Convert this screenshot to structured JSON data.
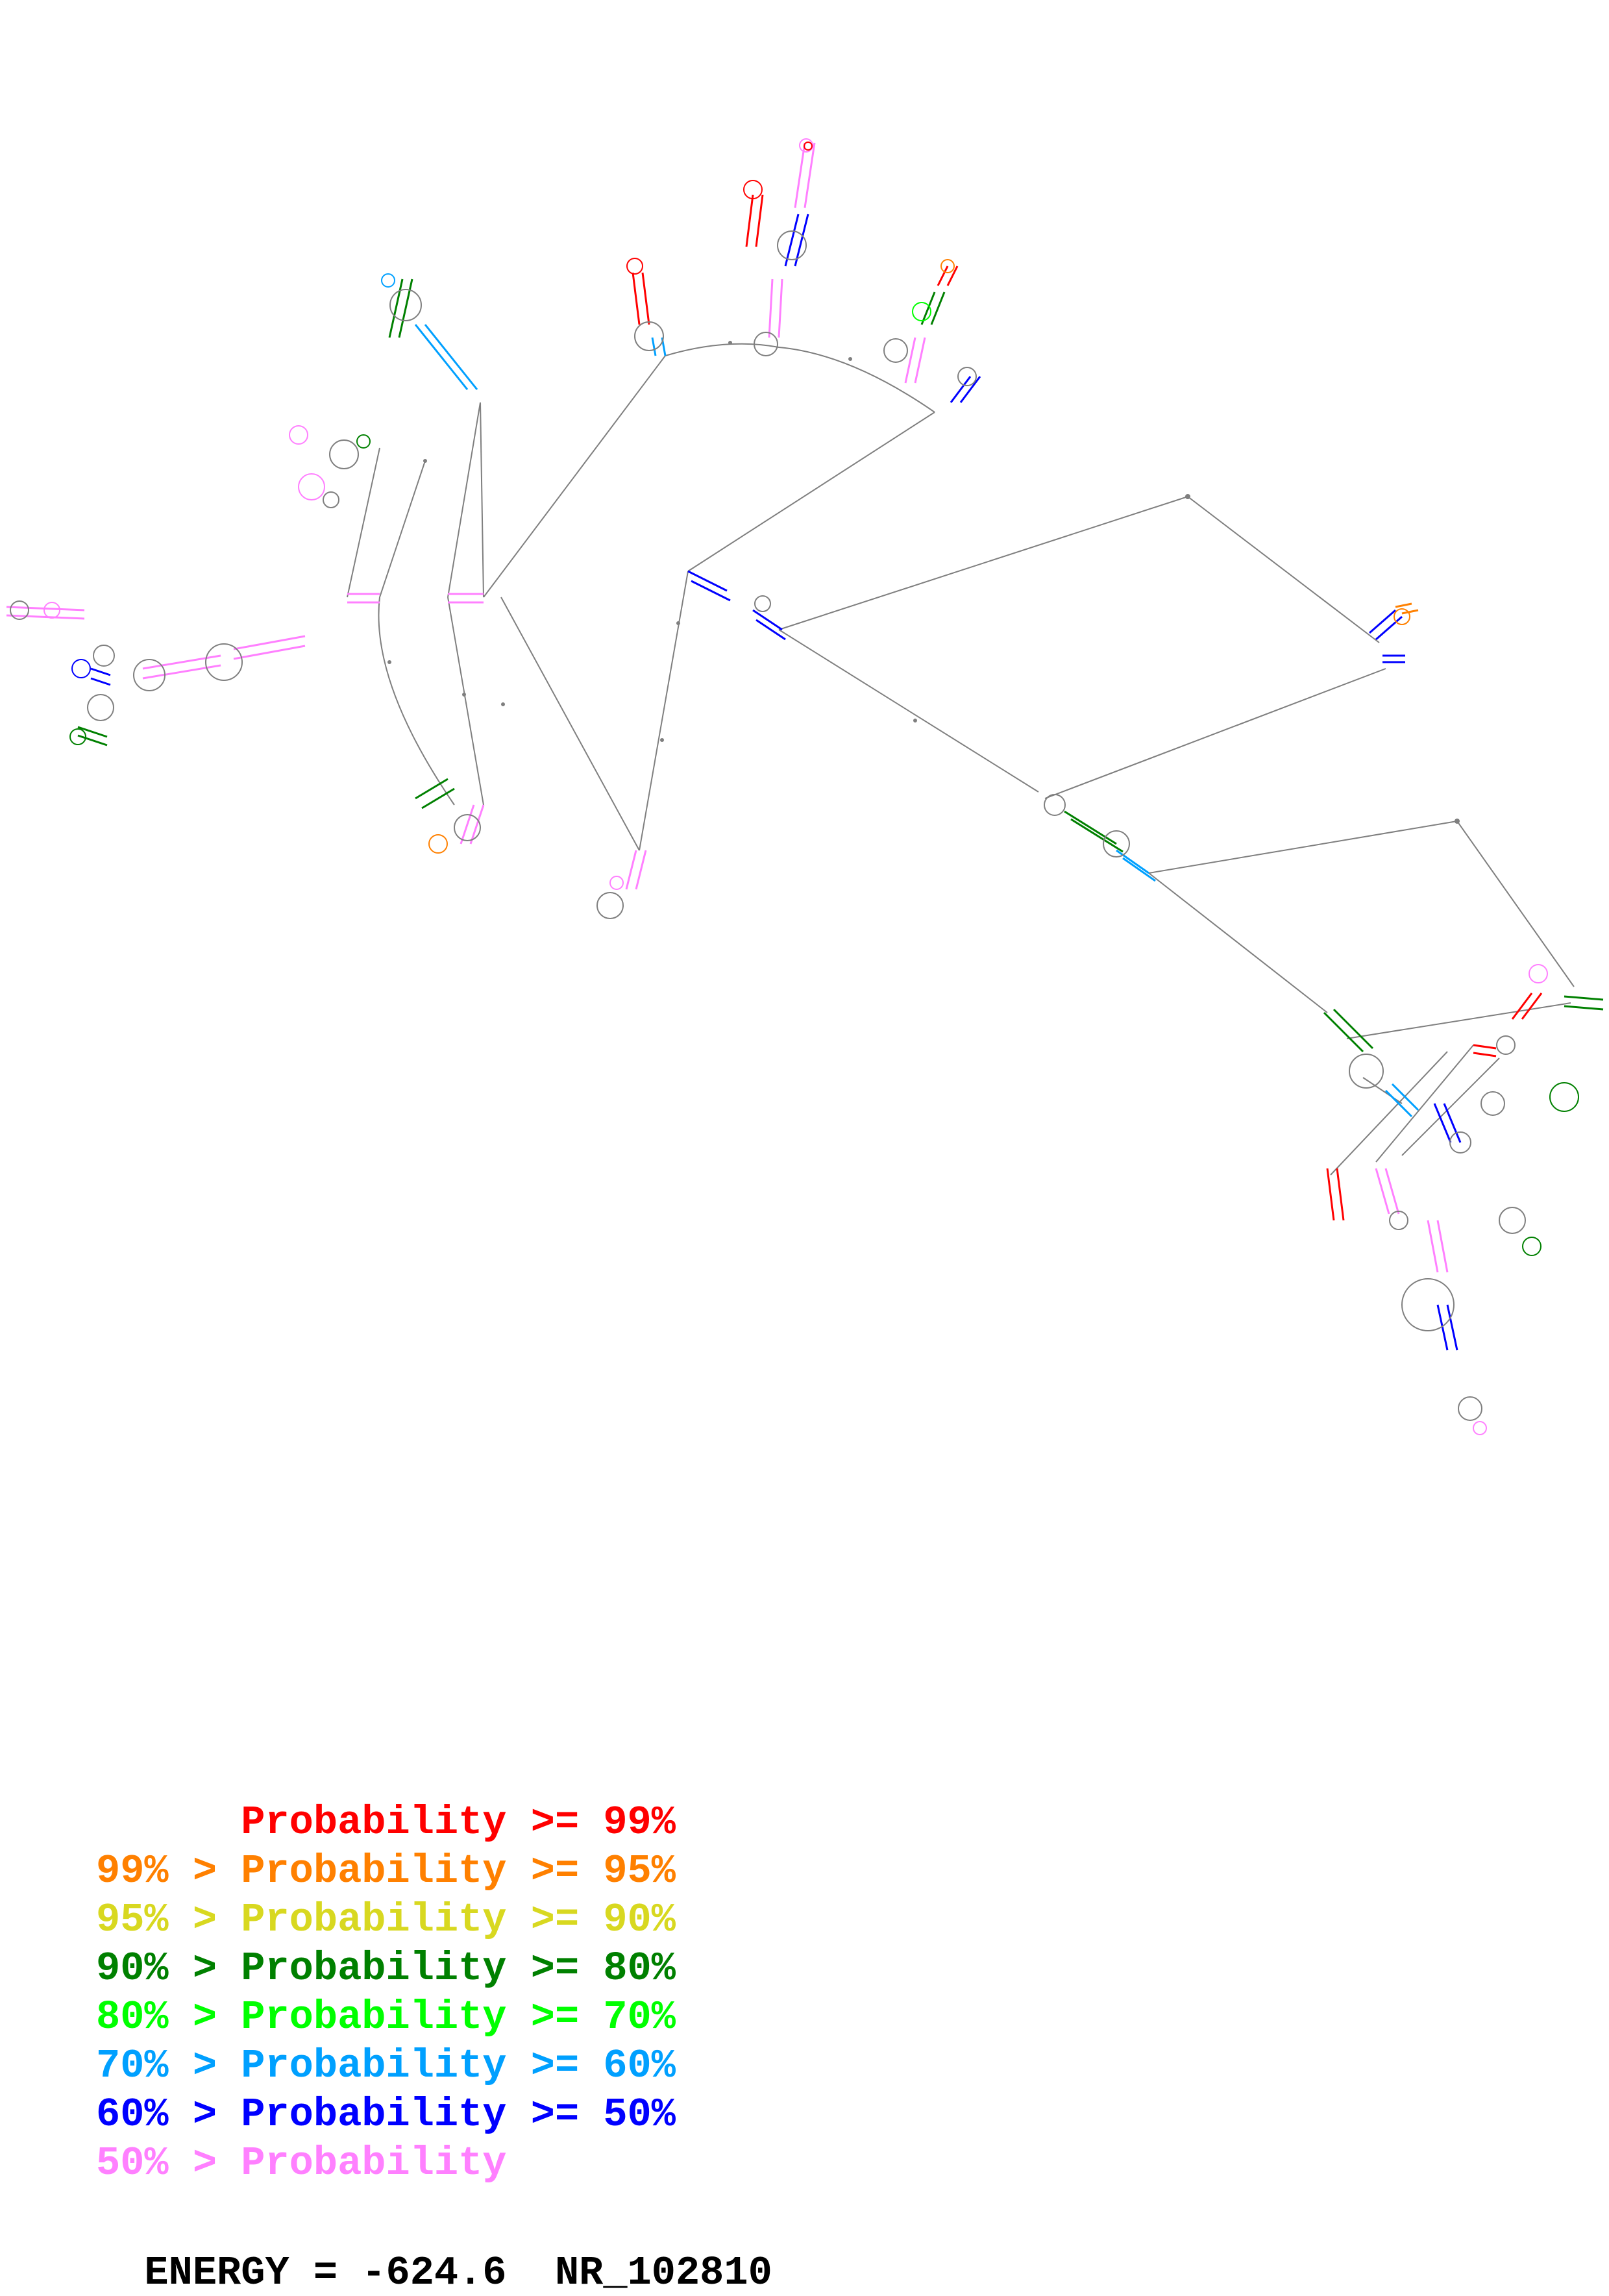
{
  "diagram": {
    "type": "rna-secondary-structure",
    "backbone_color": "#7f7f7f",
    "pair_colors": [
      "#ff0000",
      "#ff8000",
      "#d8d820",
      "#008000",
      "#00ff00",
      "#00a0ff",
      "#0000ff",
      "#ff80ff"
    ]
  },
  "legend": {
    "rows": [
      {
        "prefix": "    ",
        "label": "Probability",
        "suffix": " >= 99%",
        "color": "#ff0000"
      },
      {
        "prefix": "99% > ",
        "label": "Probability",
        "suffix": " >= 95%",
        "color": "#ff8000"
      },
      {
        "prefix": "95% > ",
        "label": "Probability",
        "suffix": " >= 90%",
        "color": "#d8d820"
      },
      {
        "prefix": "90% > ",
        "label": "Probability",
        "suffix": " >= 80%",
        "color": "#008000"
      },
      {
        "prefix": "80% > ",
        "label": "Probability",
        "suffix": " >= 70%",
        "color": "#00ff00"
      },
      {
        "prefix": "70% > ",
        "label": "Probability",
        "suffix": " >= 60%",
        "color": "#00a0ff"
      },
      {
        "prefix": "60% > ",
        "label": "Probability",
        "suffix": " >= 50%",
        "color": "#0000ff"
      },
      {
        "prefix": "50% > ",
        "label": "Probability",
        "suffix": "",
        "color": "#ff80ff"
      }
    ]
  },
  "footer": {
    "energy_label": "ENERGY = -624.6",
    "accession": "NR_102810"
  }
}
